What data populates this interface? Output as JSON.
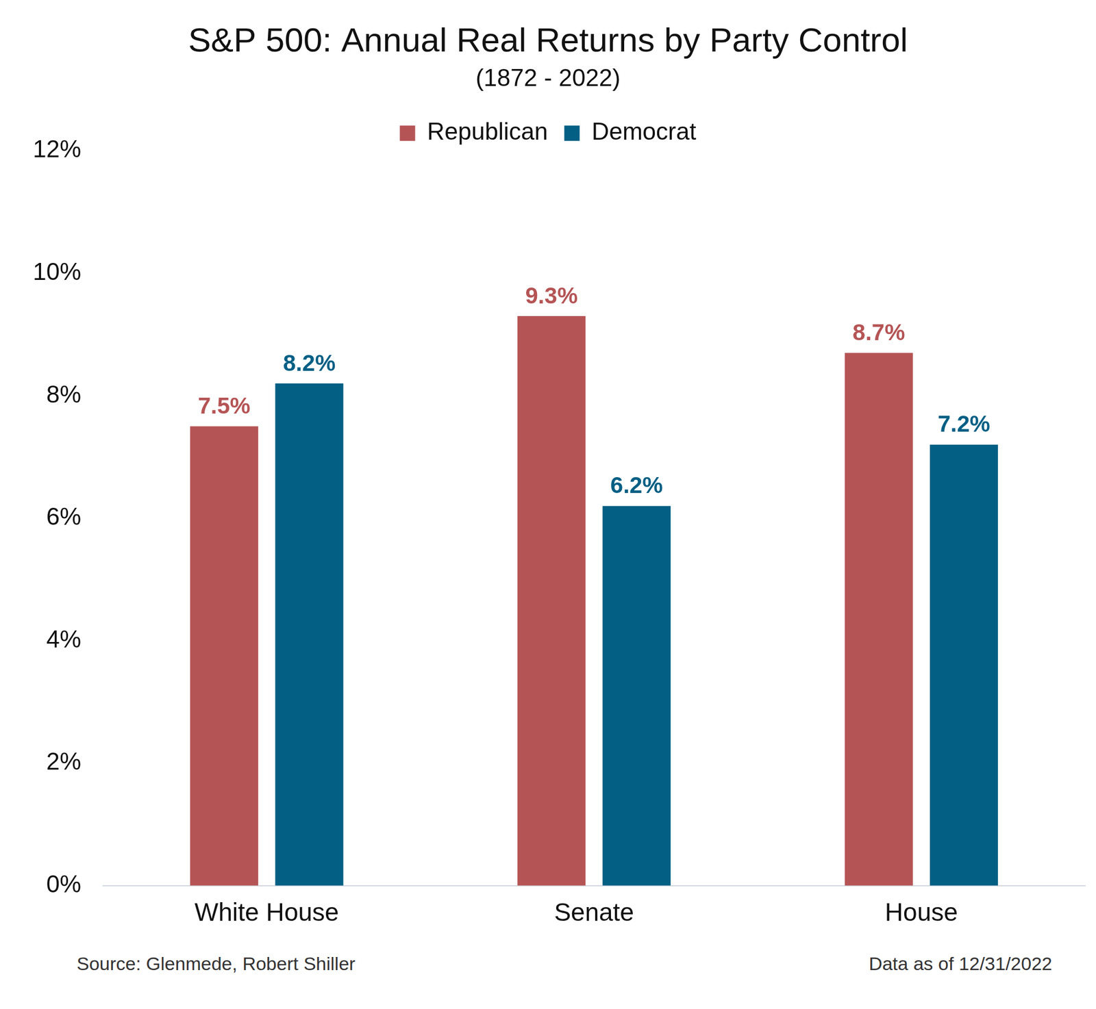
{
  "chart_data": {
    "type": "bar",
    "title": "S&P 500: Annual Real Returns by Party Control",
    "subtitle": "(1872 - 2022)",
    "categories": [
      "White House",
      "Senate",
      "House"
    ],
    "series": [
      {
        "name": "Republican",
        "color": "#b55455",
        "values": [
          7.5,
          9.3,
          8.7
        ],
        "value_labels": [
          "7.5%",
          "9.3%",
          "8.7%"
        ]
      },
      {
        "name": "Democrat",
        "color": "#035f84",
        "values": [
          8.2,
          6.2,
          7.2
        ],
        "value_labels": [
          "8.2%",
          "6.2%",
          "7.2%"
        ]
      }
    ],
    "ylim": [
      0,
      12
    ],
    "yticks": [
      {
        "value": 0,
        "label": "0%"
      },
      {
        "value": 2,
        "label": "2%"
      },
      {
        "value": 4,
        "label": "4%"
      },
      {
        "value": 6,
        "label": "6%"
      },
      {
        "value": 8,
        "label": "8%"
      },
      {
        "value": 10,
        "label": "10%"
      },
      {
        "value": 12,
        "label": "12%"
      }
    ],
    "grid": false,
    "legend": "top",
    "data_labels": true,
    "annotations": [
      "Source: Glenmede, Robert Shiller",
      "Data as of 12/31/2022"
    ]
  }
}
